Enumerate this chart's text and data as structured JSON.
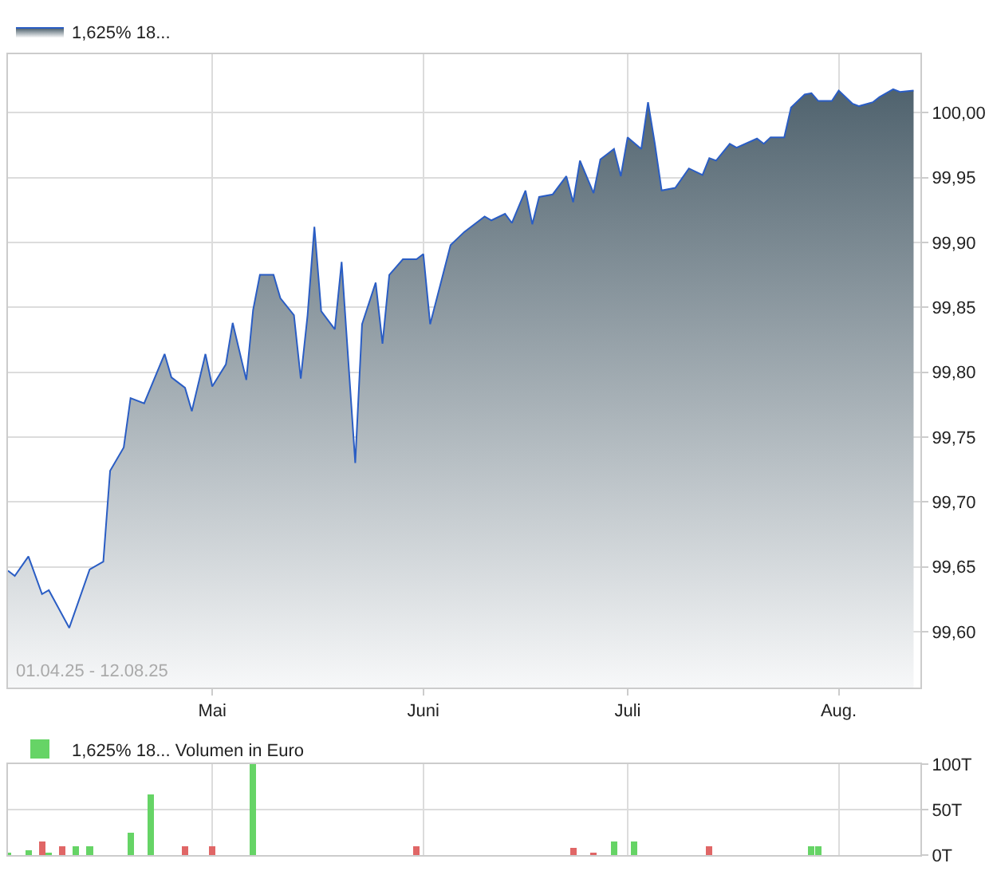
{
  "chart_data": [
    {
      "type": "area",
      "legend": "top left",
      "grid": true,
      "annotations": [
        "01.04.25 - 12.08.25"
      ],
      "x": [
        "--04-01",
        "--04-02",
        "--04-04",
        "--04-06",
        "--04-07",
        "--04-10",
        "--04-13",
        "--04-15",
        "--04-16",
        "--04-18",
        "--04-19",
        "--04-21",
        "--04-24",
        "--04-25",
        "--04-27",
        "--04-28",
        "--04-30",
        "--05-01",
        "--05-03",
        "--05-04",
        "--05-06",
        "--05-07",
        "--05-08",
        "--05-10",
        "--05-11",
        "--05-13",
        "--05-14",
        "--05-15",
        "--05-16",
        "--05-17",
        "--05-19",
        "--05-20",
        "--05-22",
        "--05-23",
        "--05-25",
        "--05-26",
        "--05-27",
        "--05-29",
        "--05-31",
        "--06-01",
        "--06-02",
        "--06-05",
        "--06-07",
        "--06-10",
        "--06-11",
        "--06-13",
        "--06-14",
        "--06-16",
        "--06-17",
        "--06-18",
        "--06-20",
        "--06-22",
        "--06-23",
        "--06-24",
        "--06-26",
        "--06-27",
        "--06-29",
        "--06-30",
        "--07-01",
        "--07-03",
        "--07-04",
        "--07-05",
        "--07-06",
        "--07-08",
        "--07-10",
        "--07-12",
        "--07-13",
        "--07-14",
        "--07-16",
        "--07-17",
        "--07-20",
        "--07-21",
        "--07-22",
        "--07-24",
        "--07-25",
        "--07-27",
        "--07-28",
        "--07-29",
        "--07-31",
        "--08-01",
        "--08-03",
        "--08-04",
        "--08-06",
        "--08-07",
        "--08-09",
        "--08-10",
        "--08-12"
      ],
      "series": [
        {
          "name": "1,625% 18...",
          "color": "#2a5dc4",
          "values": [
            99.647,
            99.643,
            99.658,
            99.629,
            99.632,
            99.603,
            99.648,
            99.654,
            99.724,
            99.742,
            99.78,
            99.776,
            99.814,
            99.796,
            99.788,
            99.77,
            99.814,
            99.789,
            99.806,
            99.838,
            99.794,
            99.848,
            99.875,
            99.875,
            99.857,
            99.844,
            99.795,
            99.844,
            99.912,
            99.847,
            99.833,
            99.885,
            99.73,
            99.837,
            99.869,
            99.822,
            99.875,
            99.887,
            99.887,
            99.891,
            99.837,
            99.898,
            99.908,
            99.92,
            99.917,
            99.922,
            99.915,
            99.94,
            99.914,
            99.935,
            99.937,
            99.951,
            99.931,
            99.963,
            99.938,
            99.964,
            99.972,
            99.951,
            99.981,
            99.972,
            100.008,
            99.976,
            99.94,
            99.942,
            99.957,
            99.952,
            99.965,
            99.963,
            99.976,
            99.973,
            99.98,
            99.976,
            99.981,
            99.981,
            100.004,
            100.014,
            100.015,
            100.009,
            100.009,
            100.017,
            100.007,
            100.005,
            100.008,
            100.012,
            100.018,
            100.016,
            100.017
          ]
        }
      ],
      "xlim": [
        "--04-01",
        "--08-13"
      ],
      "xticks": [
        {
          "value": "--05-01",
          "label": "Mai"
        },
        {
          "value": "--06-01",
          "label": "Juni"
        },
        {
          "value": "--07-01",
          "label": "Juli"
        },
        {
          "value": "--08-01",
          "label": "Aug."
        }
      ],
      "ylim": [
        99.557,
        100.045
      ],
      "yticks": [
        {
          "value": 99.6,
          "label": "99,60"
        },
        {
          "value": 99.65,
          "label": "99,65"
        },
        {
          "value": 99.7,
          "label": "99,70"
        },
        {
          "value": 99.75,
          "label": "99,75"
        },
        {
          "value": 99.8,
          "label": "99,80"
        },
        {
          "value": 99.85,
          "label": "99,85"
        },
        {
          "value": 99.9,
          "label": "99,90"
        },
        {
          "value": 99.95,
          "label": "99,95"
        },
        {
          "value": 100,
          "label": "100,00"
        }
      ]
    },
    {
      "type": "bar",
      "legend": "top left",
      "grid": true,
      "tick_labels": "y",
      "x": [
        "--04-01",
        "--04-04",
        "--04-06",
        "--04-07",
        "--04-09",
        "--04-11",
        "--04-13",
        "--04-19",
        "--04-22",
        "--04-27",
        "--05-01",
        "--05-07",
        "--05-31",
        "--06-23",
        "--06-26",
        "--06-29",
        "--07-02",
        "--07-13",
        "--07-28",
        "--07-29"
      ],
      "series": [
        {
          "name": "1,625% 18... Volumen in Euro",
          "values": [
            3,
            5,
            15,
            3,
            10,
            10,
            10,
            25,
            67,
            10,
            10,
            100,
            10,
            8,
            3,
            15,
            15,
            10,
            10,
            10
          ]
        }
      ],
      "colors": [
        "#66d466",
        "#66d466",
        "#e06666",
        "#66d466",
        "#e06666",
        "#66d466",
        "#66d466",
        "#66d466",
        "#66d466",
        "#e06666",
        "#e06666",
        "#66d466",
        "#e06666",
        "#e06666",
        "#e06666",
        "#66d466",
        "#66d466",
        "#e06666",
        "#66d466",
        "#66d466"
      ],
      "xlim": [
        "--04-01",
        "--08-13"
      ],
      "xticks": [
        {
          "value": "--05-01",
          "label": null
        },
        {
          "value": "--06-01",
          "label": null
        },
        {
          "value": "--07-01",
          "label": null
        },
        {
          "value": "--08-01",
          "label": null
        }
      ],
      "ylim": [
        0,
        100
      ],
      "yticks": [
        {
          "value": 0,
          "label": "0T"
        },
        {
          "value": 50,
          "label": "50T"
        },
        {
          "value": 100,
          "label": "100T"
        }
      ]
    }
  ]
}
